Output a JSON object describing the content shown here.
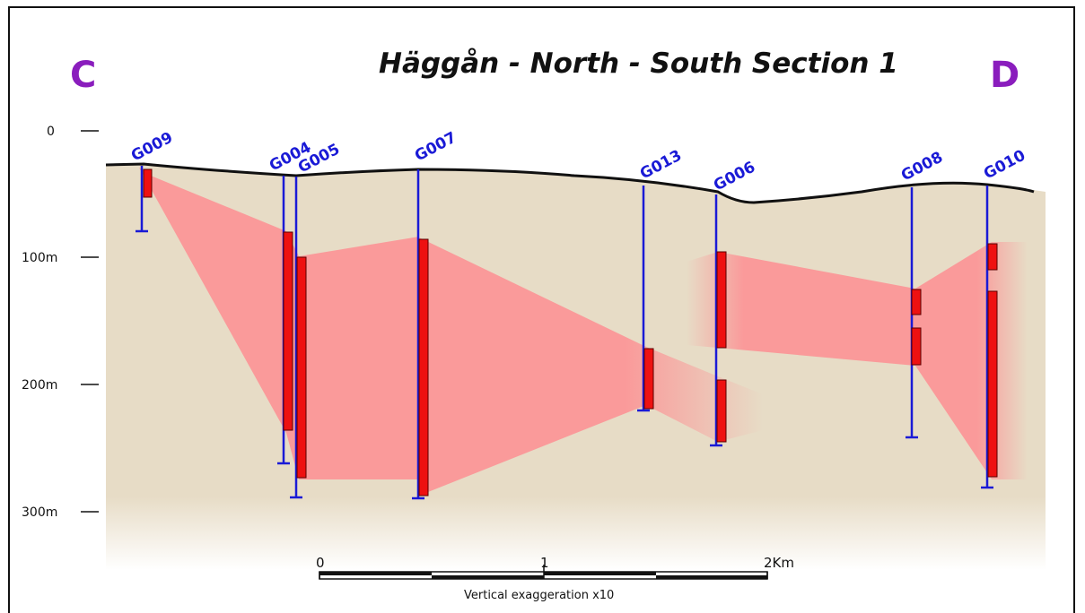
{
  "title": "Häggån - North - South Section 1",
  "section_start_label": "C",
  "section_end_label": "D",
  "depth_axis": [
    "0",
    "100m",
    "200m",
    "300m"
  ],
  "drillholes": [
    {
      "id": "G009",
      "collar_depth_m": 28,
      "end_depth_m": 80,
      "intervals": [
        [
          31,
          53
        ]
      ]
    },
    {
      "id": "G004",
      "collar_depth_m": 36,
      "end_depth_m": 260,
      "intervals": [
        [
          81,
          236
        ]
      ]
    },
    {
      "id": "G005",
      "collar_depth_m": 37,
      "end_depth_m": 289,
      "intervals": [
        [
          102,
          274
        ]
      ]
    },
    {
      "id": "G007",
      "collar_depth_m": 31,
      "end_depth_m": 290,
      "intervals": [
        [
          86,
          287
        ]
      ]
    },
    {
      "id": "G013",
      "collar_depth_m": 44,
      "end_depth_m": 221,
      "intervals": [
        [
          173,
          220
        ]
      ]
    },
    {
      "id": "G006",
      "collar_depth_m": 51,
      "end_depth_m": 248,
      "intervals": [
        [
          97,
          172
        ],
        [
          198,
          246
        ]
      ]
    },
    {
      "id": "G008",
      "collar_depth_m": 45,
      "end_depth_m": 241,
      "intervals": [
        [
          128,
          147
        ],
        [
          157,
          184
        ]
      ]
    },
    {
      "id": "G010",
      "collar_depth_m": 44,
      "end_depth_m": 281,
      "intervals": [
        [
          91,
          110
        ],
        [
          128,
          273
        ]
      ]
    }
  ],
  "scale_bar": {
    "labels": [
      "0",
      "1",
      "2Km"
    ]
  },
  "vertical_exaggeration": "Vertical exaggeration x10",
  "colors": {
    "overburden": "#e7dcc6",
    "mineralized_zone": "#fa9a9a",
    "intercept": "#ee1111",
    "drillhole": "#1a1ad6",
    "section_label": "#8a1dbd"
  }
}
